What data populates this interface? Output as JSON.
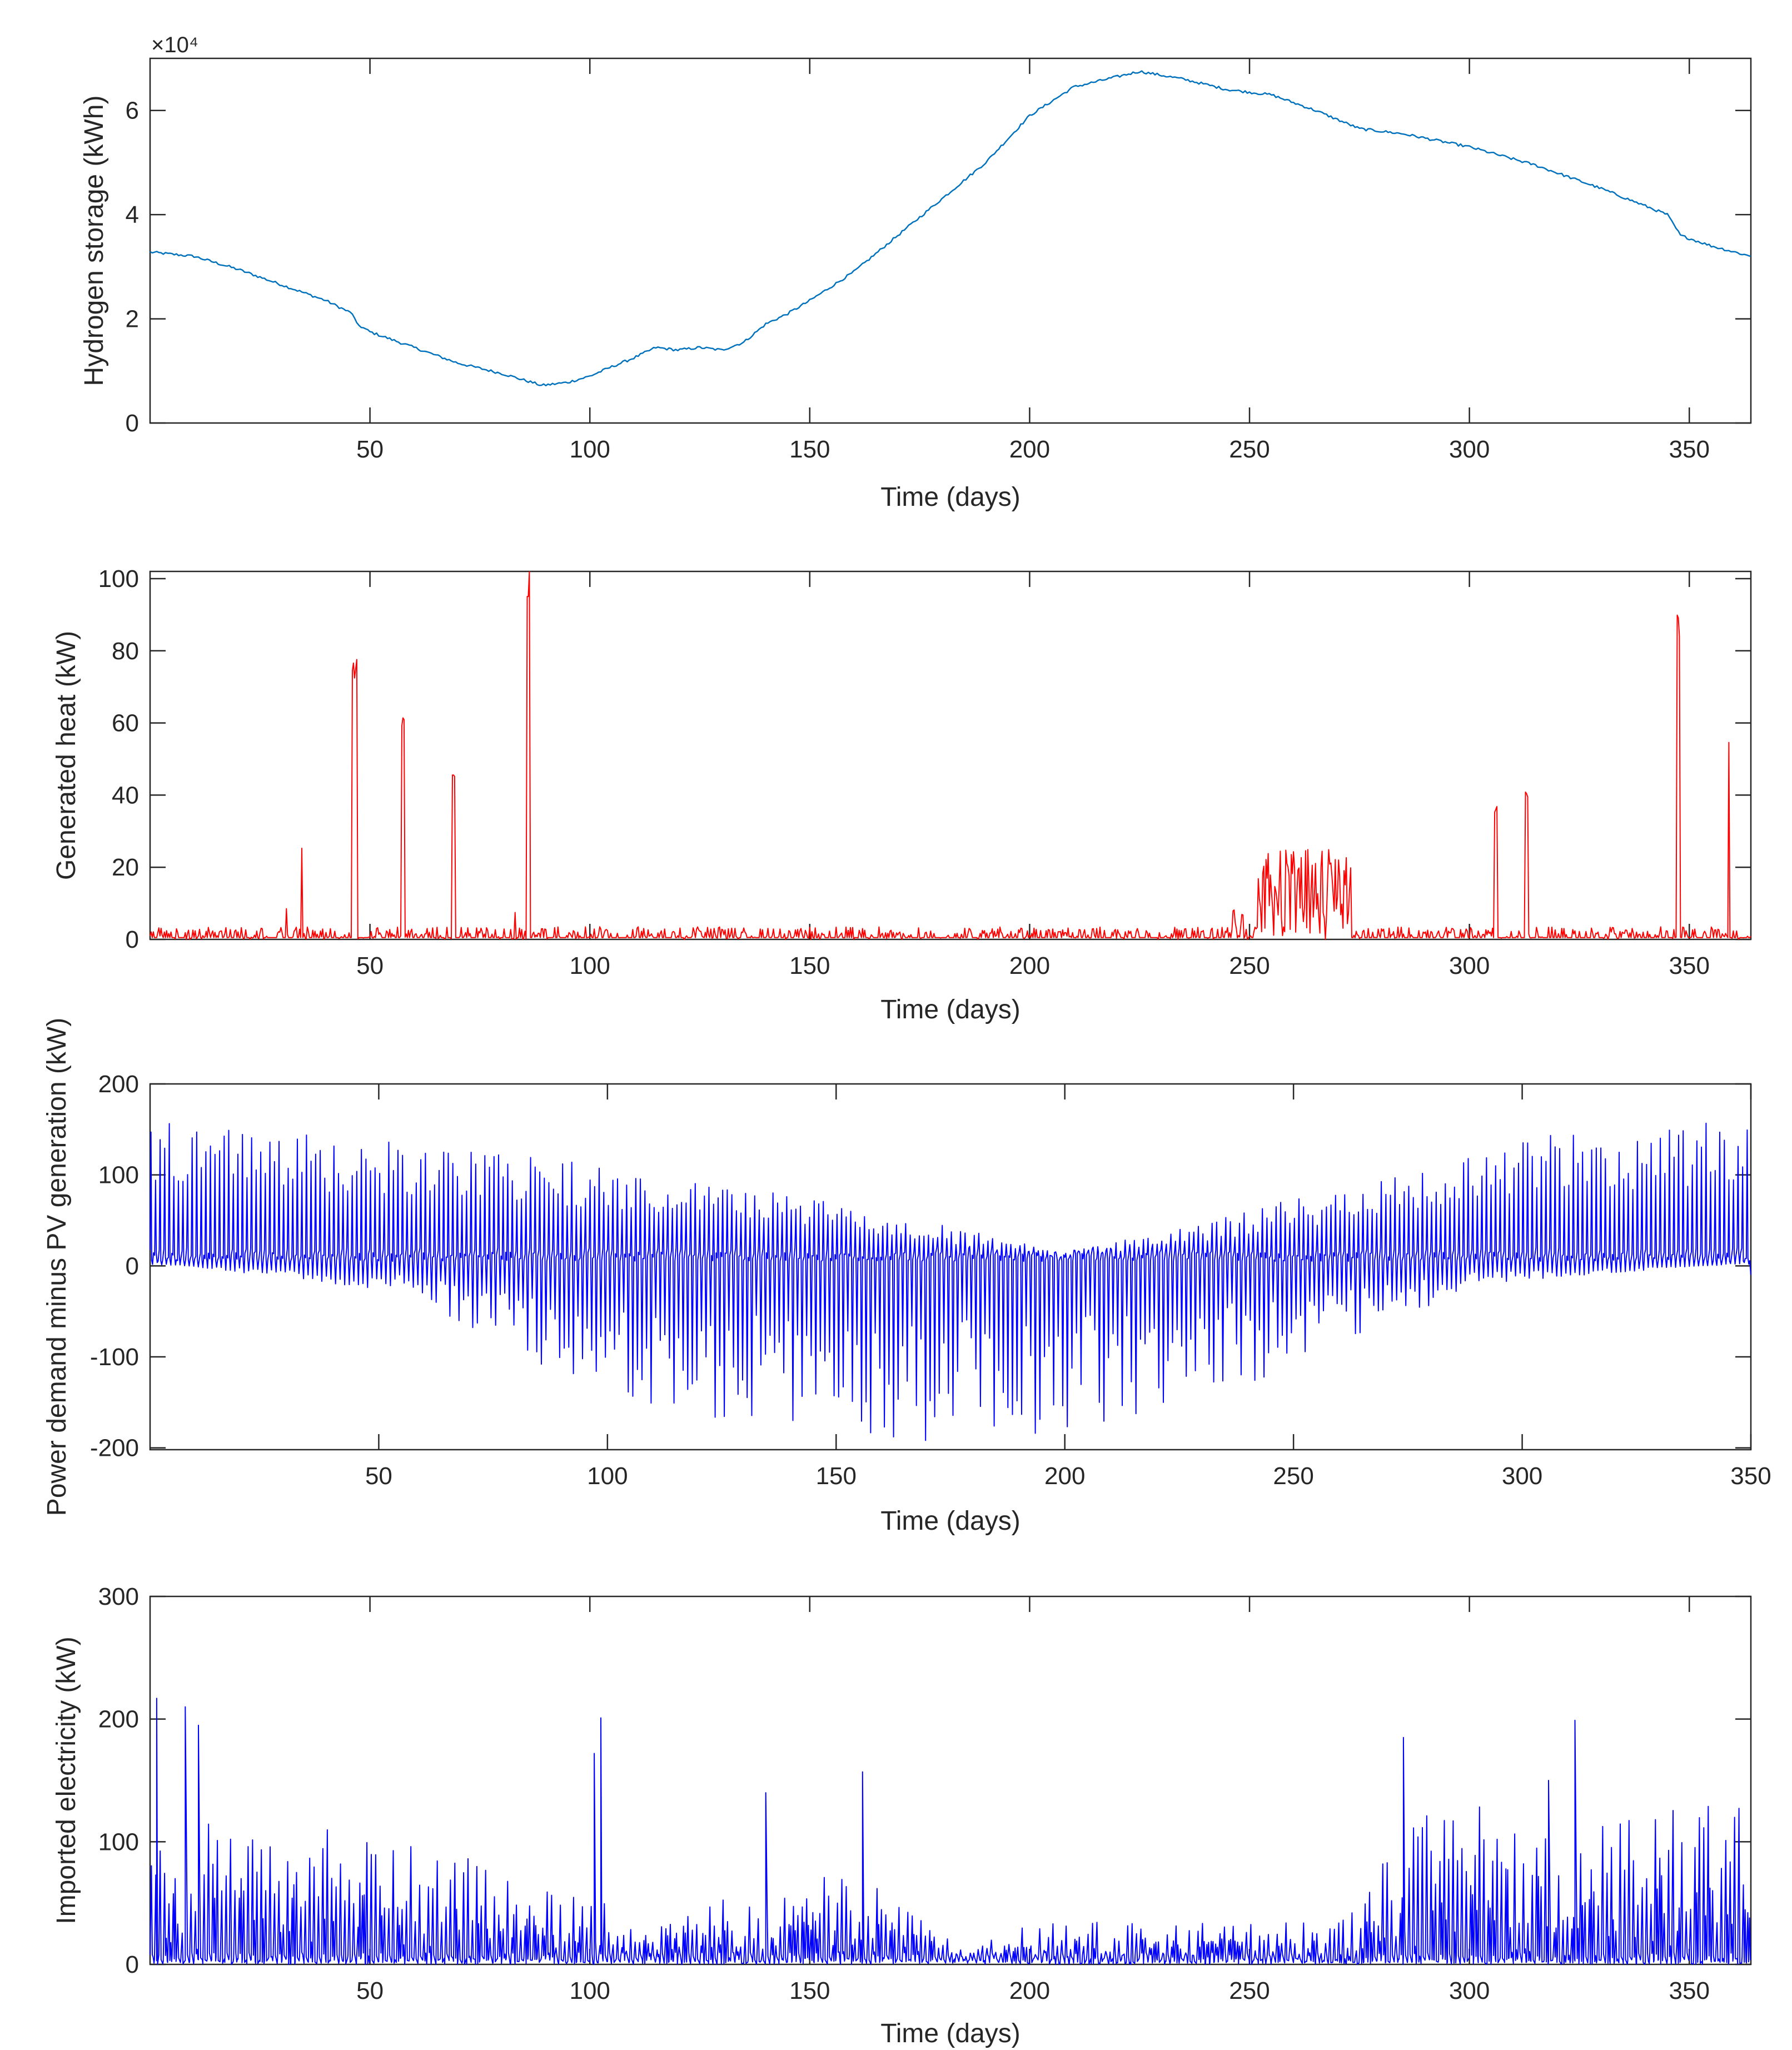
{
  "chart_data": [
    {
      "type": "line",
      "id": "hydrogen",
      "color": "#0072BD",
      "xlabel": "Time (days)",
      "ylabel": "Hydrogen storage (kWh)",
      "exponent_label": "×10⁴",
      "xlim": [
        0,
        364
      ],
      "ylim": [
        0,
        7
      ],
      "xticks": [
        50,
        100,
        150,
        200,
        250,
        300,
        350
      ],
      "xtick_labels": [
        "50",
        "100",
        "150",
        "200",
        "250",
        "300",
        "350"
      ],
      "yticks": [
        0,
        2,
        4,
        6
      ],
      "ytick_labels": [
        "0",
        "2",
        "4",
        "6"
      ],
      "series": [
        {
          "name": "Hydrogen storage",
          "x": [
            0,
            10,
            20,
            30,
            40,
            46,
            47,
            50,
            60,
            70,
            80,
            88,
            89,
            95,
            100,
            105,
            110,
            115,
            120,
            125,
            130,
            135,
            140,
            145,
            150,
            160,
            170,
            180,
            190,
            200,
            210,
            220,
            225,
            235,
            245,
            255,
            265,
            275,
            285,
            300,
            315,
            330,
            345,
            348,
            355,
            364
          ],
          "y": [
            3.28,
            3.2,
            2.95,
            2.65,
            2.35,
            2.1,
            1.9,
            1.75,
            1.45,
            1.15,
            0.95,
            0.75,
            0.72,
            0.78,
            0.9,
            1.08,
            1.25,
            1.45,
            1.4,
            1.45,
            1.4,
            1.55,
            1.9,
            2.1,
            2.35,
            2.9,
            3.6,
            4.3,
            5.0,
            5.9,
            6.45,
            6.65,
            6.75,
            6.6,
            6.4,
            6.3,
            6.0,
            5.65,
            5.55,
            5.3,
            4.95,
            4.5,
            4.0,
            3.6,
            3.4,
            3.2
          ]
        }
      ]
    },
    {
      "type": "line",
      "id": "heat",
      "color": "#FF0000",
      "xlabel": "Time (days)",
      "ylabel": "Generated heat (kW)",
      "xlim": [
        0,
        364
      ],
      "ylim": [
        0,
        102
      ],
      "xticks": [
        50,
        100,
        150,
        200,
        250,
        300,
        350
      ],
      "xtick_labels": [
        "50",
        "100",
        "150",
        "200",
        "250",
        "300",
        "350"
      ],
      "yticks": [
        0,
        20,
        40,
        60,
        80,
        100
      ],
      "ytick_labels": [
        "0",
        "20",
        "40",
        "60",
        "80",
        "100"
      ],
      "series": [
        {
          "name": "Generated heat",
          "baseline_noise_max": 3.5,
          "spikes": [
            {
              "x": 31,
              "y": 9,
              "width": 0.4
            },
            {
              "x": 34.5,
              "y": 26,
              "width": 0.4
            },
            {
              "x": 46.5,
              "y": 78,
              "width": 1.2
            },
            {
              "x": 57.5,
              "y": 62,
              "width": 0.5
            },
            {
              "x": 69,
              "y": 49,
              "width": 0.5
            },
            {
              "x": 83,
              "y": 8,
              "width": 0.4
            },
            {
              "x": 86,
              "y": 103,
              "width": 0.5
            },
            {
              "x": 306,
              "y": 38,
              "width": 0.5
            },
            {
              "x": 313,
              "y": 42,
              "width": 0.6
            },
            {
              "x": 347.5,
              "y": 91,
              "width": 0.8
            },
            {
              "x": 359,
              "y": 55,
              "width": 0.4
            }
          ],
          "bursts": [
            {
              "from": 246,
              "to": 249,
              "max": 9
            },
            {
              "from": 252,
              "to": 273,
              "max": 25
            }
          ]
        }
      ]
    },
    {
      "type": "line",
      "id": "net_demand",
      "color": "#0000FF",
      "xlabel": "Time (days)",
      "ylabel": "Power demand minus PV generation (kW)",
      "xlim": [
        0,
        350
      ],
      "ylim": [
        -202,
        200
      ],
      "xticks": [
        50,
        100,
        150,
        200,
        250,
        300,
        350
      ],
      "xtick_labels": [
        "50",
        "100",
        "150",
        "200",
        "250",
        "300",
        "350"
      ],
      "yticks": [
        -200,
        -100,
        0,
        100,
        200
      ],
      "ytick_labels": [
        "-200",
        "-100",
        "0",
        "100",
        "200"
      ],
      "series": [
        {
          "name": "Net demand",
          "daily_peak_max": [
            [
              0,
              165
            ],
            [
              100,
              110
            ],
            [
              150,
              70
            ],
            [
              200,
              15
            ],
            [
              240,
              60
            ],
            [
              300,
              145
            ],
            [
              350,
              160
            ]
          ],
          "daily_trough_min": [
            [
              0,
              5
            ],
            [
              55,
              -30
            ],
            [
              100,
              -150
            ],
            [
              150,
              -190
            ],
            [
              190,
              -195
            ],
            [
              240,
              -130
            ],
            [
              290,
              -20
            ],
            [
              350,
              5
            ]
          ]
        }
      ]
    },
    {
      "type": "line",
      "id": "imported",
      "color": "#0000FF",
      "xlabel": "Time (days)",
      "ylabel": "Imported electricity (kW)",
      "xlim": [
        0,
        364
      ],
      "ylim": [
        0,
        300
      ],
      "xticks": [
        50,
        100,
        150,
        200,
        250,
        300,
        350
      ],
      "xtick_labels": [
        "50",
        "100",
        "150",
        "200",
        "250",
        "300",
        "350"
      ],
      "yticks": [
        0,
        100,
        200,
        300
      ],
      "ytick_labels": [
        "0",
        "100",
        "200",
        "300"
      ],
      "series": [
        {
          "name": "Imported electricity",
          "daily_peak_envelope": [
            [
              0,
              120
            ],
            [
              60,
              110
            ],
            [
              90,
              60
            ],
            [
              115,
              40
            ],
            [
              160,
              80
            ],
            [
              185,
              10
            ],
            [
              200,
              35
            ],
            [
              270,
              35
            ],
            [
              290,
              130
            ],
            [
              364,
              130
            ]
          ],
          "notable_peaks": [
            {
              "x": 1.5,
              "y": 217
            },
            {
              "x": 8,
              "y": 210
            },
            {
              "x": 11,
              "y": 195
            },
            {
              "x": 101,
              "y": 172
            },
            {
              "x": 102.5,
              "y": 201
            },
            {
              "x": 140,
              "y": 140
            },
            {
              "x": 162,
              "y": 157
            },
            {
              "x": 285,
              "y": 185
            },
            {
              "x": 318,
              "y": 150
            },
            {
              "x": 324,
              "y": 199
            }
          ]
        }
      ]
    }
  ]
}
